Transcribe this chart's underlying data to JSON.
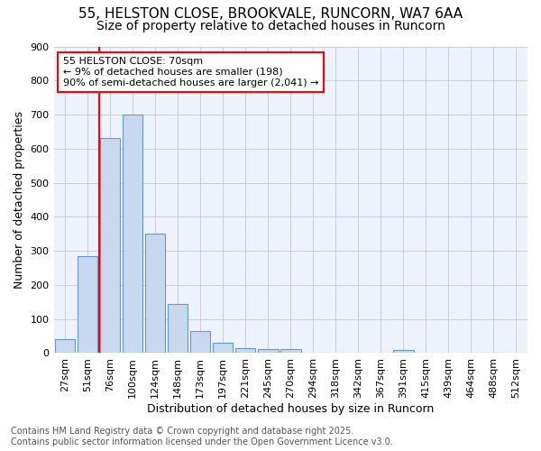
{
  "title1": "55, HELSTON CLOSE, BROOKVALE, RUNCORN, WA7 6AA",
  "title2": "Size of property relative to detached houses in Runcorn",
  "xlabel": "Distribution of detached houses by size in Runcorn",
  "ylabel": "Number of detached properties",
  "categories": [
    "27sqm",
    "51sqm",
    "76sqm",
    "100sqm",
    "124sqm",
    "148sqm",
    "173sqm",
    "197sqm",
    "221sqm",
    "245sqm",
    "270sqm",
    "294sqm",
    "318sqm",
    "342sqm",
    "367sqm",
    "391sqm",
    "415sqm",
    "439sqm",
    "464sqm",
    "488sqm",
    "512sqm"
  ],
  "values": [
    42,
    285,
    632,
    700,
    350,
    145,
    65,
    30,
    15,
    12,
    12,
    0,
    0,
    0,
    0,
    8,
    0,
    0,
    0,
    0,
    0
  ],
  "bar_color": "#c8d8ef",
  "bar_edge_color": "#6699cc",
  "vline_color": "red",
  "vline_x": 1.5,
  "annotation_title": "55 HELSTON CLOSE: 70sqm",
  "annotation_line1": "← 9% of detached houses are smaller (198)",
  "annotation_line2": "90% of semi-detached houses are larger (2,041) →",
  "ylim": [
    0,
    900
  ],
  "yticks": [
    0,
    100,
    200,
    300,
    400,
    500,
    600,
    700,
    800,
    900
  ],
  "footer_line1": "Contains HM Land Registry data © Crown copyright and database right 2025.",
  "footer_line2": "Contains public sector information licensed under the Open Government Licence v3.0.",
  "fig_bg_color": "#ffffff",
  "plot_bg_color": "#eef2fb",
  "grid_color": "#ccccdd",
  "title1_fontsize": 11,
  "title2_fontsize": 10,
  "axis_label_fontsize": 9,
  "tick_fontsize": 8,
  "footer_fontsize": 7,
  "ann_fontsize": 8
}
